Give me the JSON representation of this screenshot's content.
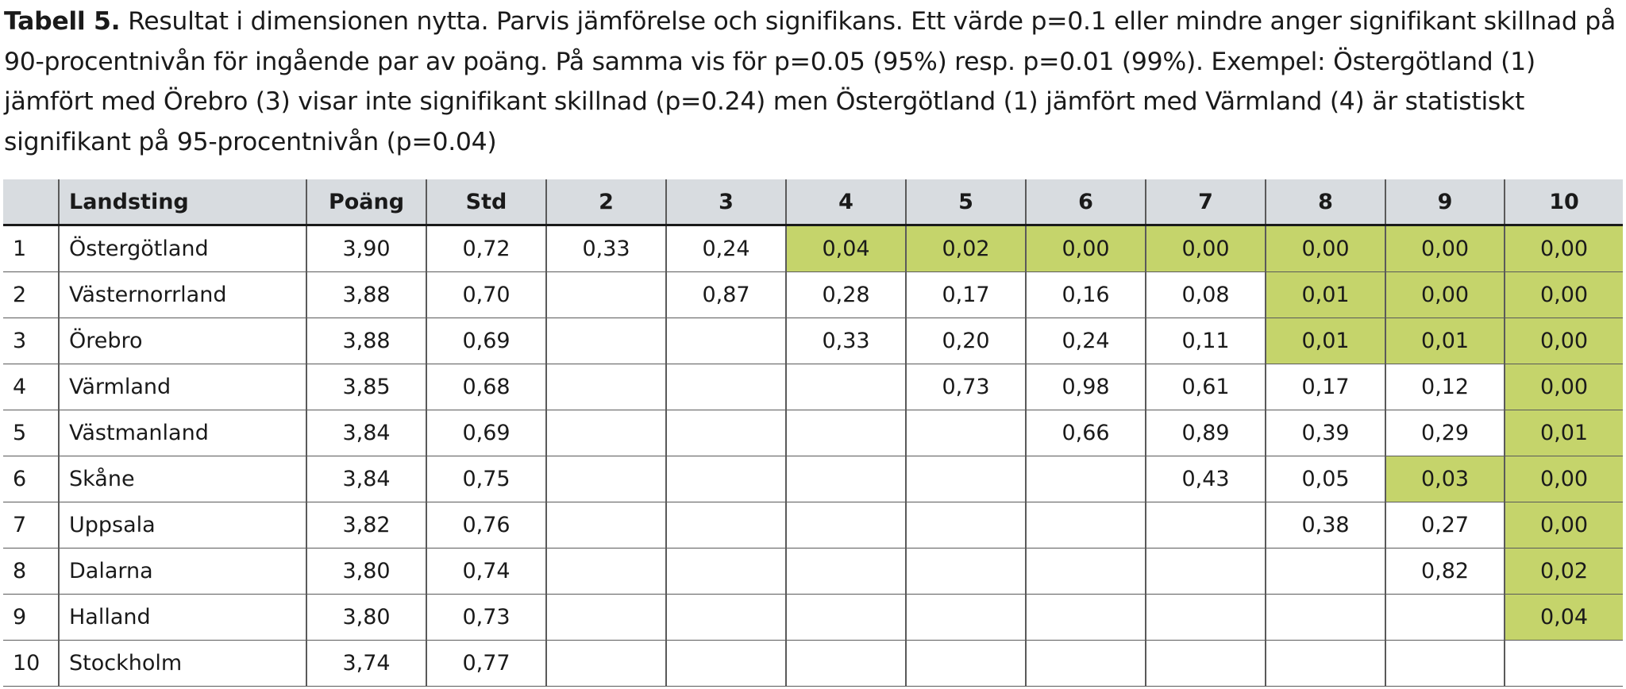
{
  "caption": {
    "lead": "Tabell 5.",
    "text": "Resultat i dimensionen nytta. Parvis jämförelse och signifikans. Ett värde p=0.1 eller mindre anger signifikant skillnad på 90-procentnivån för ingående par av poäng. På samma vis för p=0.05 (95%) resp. p=0.01 (99%). Exempel: Östergötland (1) jämfört med Örebro (3) visar inte signifikant skillnad (p=0.24) men Östergötland (1) jämfört med Värmland (4) är statistiskt signifikant på 95-procentnivån (p=0.04)"
  },
  "colors": {
    "header_bg": "#d8dce0",
    "significant_bg": "#c5d46b",
    "border": "#5a5a5a"
  },
  "table": {
    "headers": [
      "",
      "Landsting",
      "Poäng",
      "Std",
      "2",
      "3",
      "4",
      "5",
      "6",
      "7",
      "8",
      "9",
      "10"
    ],
    "rows": [
      {
        "cells": [
          "1",
          "Östergötland",
          "3,90",
          "0,72",
          "0,33",
          "0,24",
          "0,04",
          "0,02",
          "0,00",
          "0,00",
          "0,00",
          "0,00",
          "0,00"
        ],
        "significant": [
          false,
          false,
          false,
          false,
          false,
          false,
          true,
          true,
          true,
          true,
          true,
          true,
          true
        ]
      },
      {
        "cells": [
          "2",
          "Västernorrland",
          "3,88",
          "0,70",
          "",
          "0,87",
          "0,28",
          "0,17",
          "0,16",
          "0,08",
          "0,01",
          "0,00",
          "0,00"
        ],
        "significant": [
          false,
          false,
          false,
          false,
          false,
          false,
          false,
          false,
          false,
          false,
          true,
          true,
          true
        ]
      },
      {
        "cells": [
          "3",
          "Örebro",
          "3,88",
          "0,69",
          "",
          "",
          "0,33",
          "0,20",
          "0,24",
          "0,11",
          "0,01",
          "0,01",
          "0,00"
        ],
        "significant": [
          false,
          false,
          false,
          false,
          false,
          false,
          false,
          false,
          false,
          false,
          true,
          true,
          true
        ]
      },
      {
        "cells": [
          "4",
          "Värmland",
          "3,85",
          "0,68",
          "",
          "",
          "",
          "0,73",
          "0,98",
          "0,61",
          "0,17",
          "0,12",
          "0,00"
        ],
        "significant": [
          false,
          false,
          false,
          false,
          false,
          false,
          false,
          false,
          false,
          false,
          false,
          false,
          true
        ]
      },
      {
        "cells": [
          "5",
          "Västmanland",
          "3,84",
          "0,69",
          "",
          "",
          "",
          "",
          "0,66",
          "0,89",
          "0,39",
          "0,29",
          "0,01"
        ],
        "significant": [
          false,
          false,
          false,
          false,
          false,
          false,
          false,
          false,
          false,
          false,
          false,
          false,
          true
        ]
      },
      {
        "cells": [
          "6",
          "Skåne",
          "3,84",
          "0,75",
          "",
          "",
          "",
          "",
          "",
          "0,43",
          "0,05",
          "0,03",
          "0,00"
        ],
        "significant": [
          false,
          false,
          false,
          false,
          false,
          false,
          false,
          false,
          false,
          false,
          false,
          true,
          true
        ]
      },
      {
        "cells": [
          "7",
          "Uppsala",
          "3,82",
          "0,76",
          "",
          "",
          "",
          "",
          "",
          "",
          "0,38",
          "0,27",
          "0,00"
        ],
        "significant": [
          false,
          false,
          false,
          false,
          false,
          false,
          false,
          false,
          false,
          false,
          false,
          false,
          true
        ]
      },
      {
        "cells": [
          "8",
          "Dalarna",
          "3,80",
          "0,74",
          "",
          "",
          "",
          "",
          "",
          "",
          "",
          "0,82",
          "0,02"
        ],
        "significant": [
          false,
          false,
          false,
          false,
          false,
          false,
          false,
          false,
          false,
          false,
          false,
          false,
          true
        ]
      },
      {
        "cells": [
          "9",
          "Halland",
          "3,80",
          "0,73",
          "",
          "",
          "",
          "",
          "",
          "",
          "",
          "",
          "0,04"
        ],
        "significant": [
          false,
          false,
          false,
          false,
          false,
          false,
          false,
          false,
          false,
          false,
          false,
          false,
          true
        ]
      },
      {
        "cells": [
          "10",
          "Stockholm",
          "3,74",
          "0,77",
          "",
          "",
          "",
          "",
          "",
          "",
          "",
          "",
          ""
        ],
        "significant": [
          false,
          false,
          false,
          false,
          false,
          false,
          false,
          false,
          false,
          false,
          false,
          false,
          false
        ]
      }
    ]
  }
}
